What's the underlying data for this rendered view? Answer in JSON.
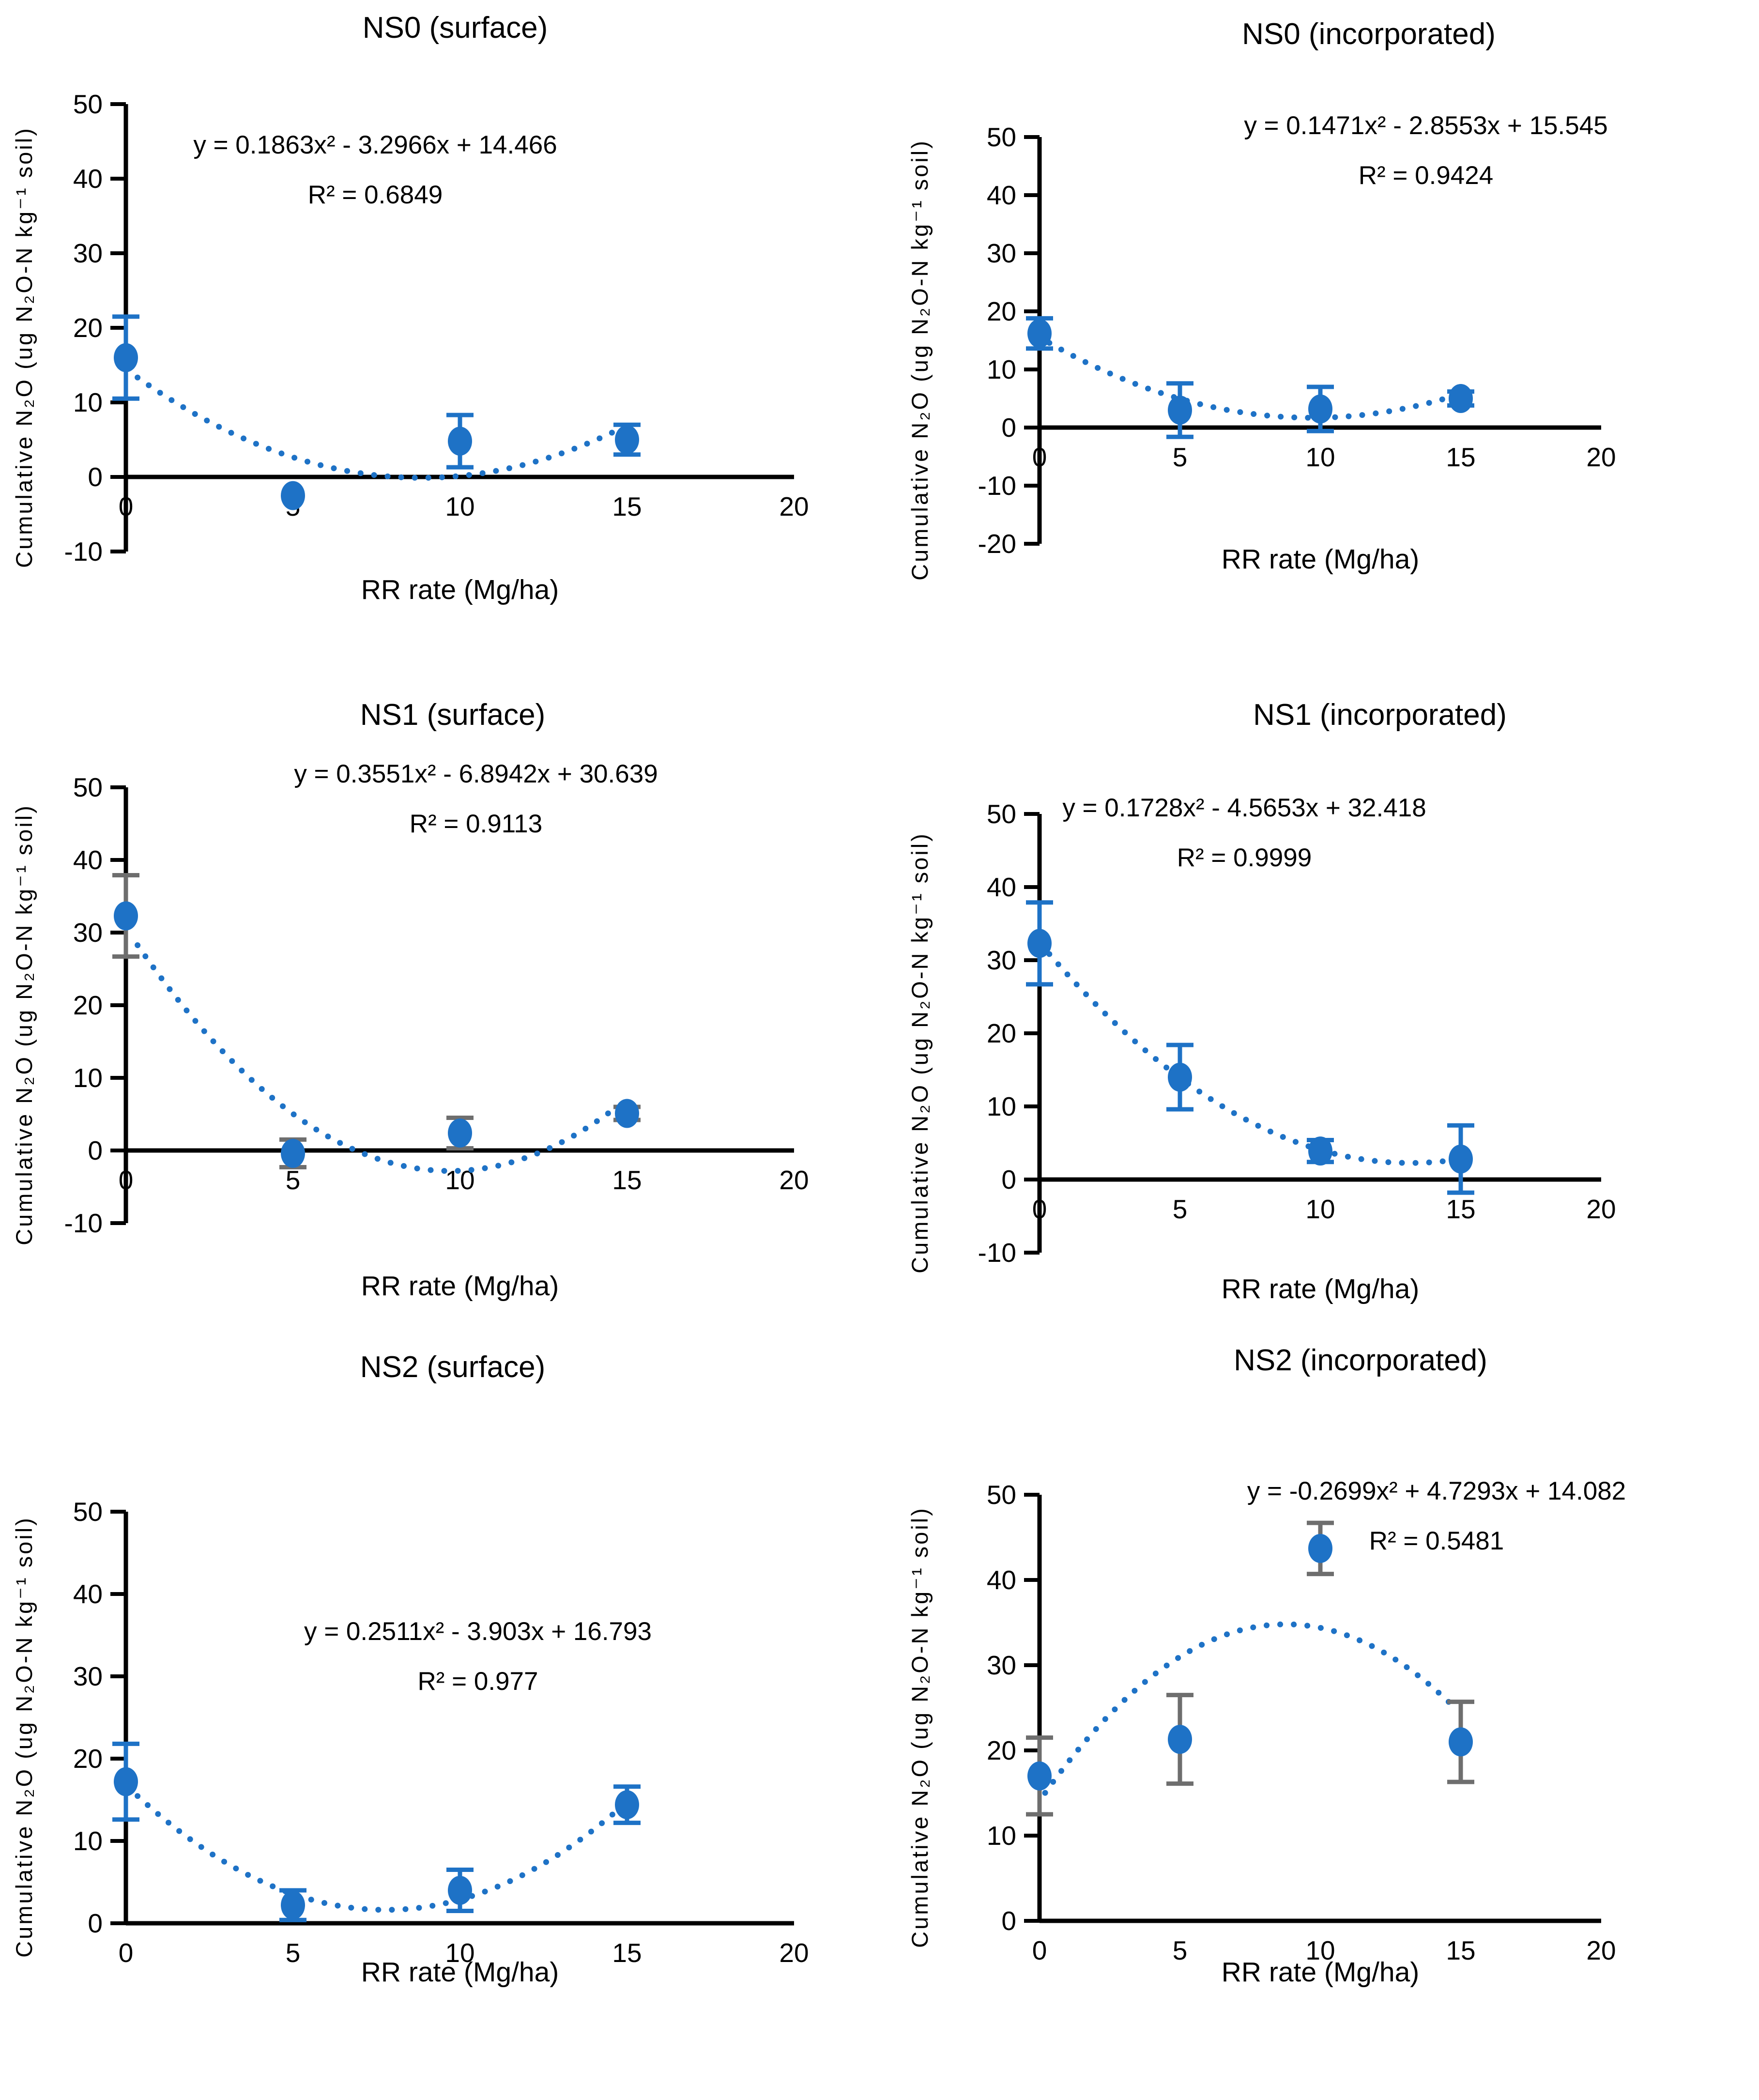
{
  "figure": {
    "layout_grid": "2 columns x 3 rows",
    "x_axis_label": "RR rate (Mg/ha)",
    "y_axis_label": "Cumulative N₂O (ug N₂O-N kg⁻¹ soil)",
    "colors": {
      "marker_blue": "#1E72C6",
      "error_gray": "#6E6E6E",
      "axis_black": "#000000",
      "background": "#FFFFFF"
    }
  },
  "chart_data": [
    {
      "type": "scatter",
      "title": "NS0 (surface)",
      "equation": "y = 0.1863x² - 3.2966x + 14.466",
      "r_squared": "R² = 0.6849",
      "x": [
        0,
        5,
        10,
        15
      ],
      "y": [
        16.0,
        -2.5,
        4.8,
        5.0
      ],
      "y_err": [
        5.5,
        0,
        3.5,
        2.0
      ],
      "error_bar_color": "blue",
      "fit": {
        "a": 0.1863,
        "b": -3.2966,
        "c": 14.466,
        "x_range": [
          0.35,
          14.6
        ]
      },
      "xlim": [
        0,
        20
      ],
      "ylim": [
        -10,
        50
      ],
      "xticks": [
        0,
        5,
        10,
        15,
        20
      ],
      "yticks": [
        -10,
        0,
        10,
        20,
        30,
        40,
        50
      ],
      "trend_style": "dotted"
    },
    {
      "type": "scatter",
      "title": "NS0 (incorporated)",
      "equation": "y = 0.1471x² - 2.8553x + 15.545",
      "r_squared": "R² = 0.9424",
      "x": [
        0,
        5,
        10,
        15
      ],
      "y": [
        16.2,
        3.0,
        3.2,
        5.0
      ],
      "y_err": [
        2.6,
        4.6,
        3.8,
        1.2
      ],
      "error_bar_color": "blue",
      "fit": {
        "a": 0.1471,
        "b": -2.8553,
        "c": 15.545,
        "x_range": [
          0.35,
          14.6
        ]
      },
      "xlim": [
        0,
        20
      ],
      "ylim": [
        -20,
        50
      ],
      "xticks": [
        0,
        5,
        10,
        15,
        20
      ],
      "yticks": [
        -20,
        -10,
        0,
        10,
        20,
        30,
        40,
        50
      ],
      "trend_style": "dotted"
    },
    {
      "type": "scatter",
      "title": "NS1 (surface)",
      "equation": "y = 0.3551x² - 6.8942x + 30.639",
      "r_squared": "R² = 0.9113",
      "x": [
        0,
        5,
        10,
        15
      ],
      "y": [
        32.3,
        -0.4,
        2.4,
        5.1
      ],
      "y_err": [
        5.6,
        1.9,
        2.1,
        0.9
      ],
      "error_bar_color": "gray",
      "fit": {
        "a": 0.3551,
        "b": -6.8942,
        "c": 30.639,
        "x_range": [
          0.35,
          14.65
        ]
      },
      "xlim": [
        0,
        20
      ],
      "ylim": [
        -10,
        50
      ],
      "xticks": [
        0,
        5,
        10,
        15,
        20
      ],
      "yticks": [
        -10,
        0,
        10,
        20,
        30,
        40,
        50
      ],
      "trend_style": "dotted"
    },
    {
      "type": "scatter",
      "title": "NS1 (incorporated)",
      "equation": "y = 0.1728x² - 4.5653x + 32.418",
      "r_squared": "R² = 0.9999",
      "x": [
        0,
        5,
        10,
        15
      ],
      "y": [
        32.3,
        14.0,
        3.9,
        2.8
      ],
      "y_err": [
        5.6,
        4.4,
        1.5,
        4.6
      ],
      "error_bar_color": "blue",
      "fit": {
        "a": 0.1728,
        "b": -4.5653,
        "c": 32.418,
        "x_range": [
          0.35,
          14.6
        ]
      },
      "xlim": [
        0,
        20
      ],
      "ylim": [
        -10,
        50
      ],
      "xticks": [
        0,
        5,
        10,
        15,
        20
      ],
      "yticks": [
        -10,
        0,
        10,
        20,
        30,
        40,
        50
      ],
      "trend_style": "dotted"
    },
    {
      "type": "scatter",
      "title": "NS2 (surface)",
      "equation": "y = 0.2511x² - 3.903x + 16.793",
      "r_squared": "R² = 0.977",
      "x": [
        0,
        5,
        10,
        15
      ],
      "y": [
        17.2,
        2.2,
        4.0,
        14.4
      ],
      "y_err": [
        4.6,
        1.8,
        2.5,
        2.2
      ],
      "error_bar_color": "blue",
      "fit": {
        "a": 0.2511,
        "b": -3.903,
        "c": 16.793,
        "x_range": [
          0.35,
          14.65
        ]
      },
      "xlim": [
        0,
        20
      ],
      "ylim": [
        0,
        50
      ],
      "xticks": [
        0,
        5,
        10,
        15,
        20
      ],
      "yticks": [
        0,
        10,
        20,
        30,
        40,
        50
      ],
      "trend_style": "dotted"
    },
    {
      "type": "scatter",
      "title": "NS2 (incorporated)",
      "equation": "y = -0.2699x² + 4.7293x + 14.082",
      "r_squared": "R² = 0.5481",
      "x": [
        0,
        5,
        10,
        15
      ],
      "y": [
        17.0,
        21.3,
        43.7,
        21.0
      ],
      "y_err": [
        4.5,
        5.2,
        3.0,
        4.7
      ],
      "error_bar_color": "gray",
      "fit": {
        "a": -0.2699,
        "b": 4.7293,
        "c": 14.082,
        "x_range": [
          0.2,
          14.8
        ]
      },
      "xlim": [
        0,
        20
      ],
      "ylim": [
        0,
        50
      ],
      "xticks": [
        0,
        5,
        10,
        15,
        20
      ],
      "yticks": [
        0,
        10,
        20,
        30,
        40,
        50
      ],
      "trend_style": "dotted"
    }
  ]
}
